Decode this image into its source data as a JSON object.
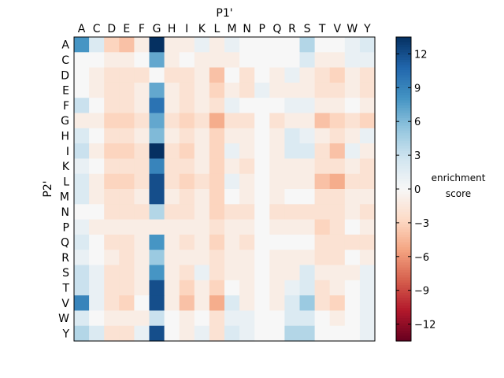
{
  "chart_data": {
    "type": "heatmap",
    "xlabel": "P1'",
    "ylabel": "P2'",
    "x_categories": [
      "A",
      "C",
      "D",
      "E",
      "F",
      "G",
      "H",
      "I",
      "K",
      "L",
      "M",
      "N",
      "P",
      "Q",
      "R",
      "S",
      "T",
      "V",
      "W",
      "Y"
    ],
    "y_categories": [
      "A",
      "C",
      "D",
      "E",
      "F",
      "G",
      "H",
      "I",
      "K",
      "L",
      "M",
      "N",
      "P",
      "Q",
      "R",
      "S",
      "T",
      "V",
      "W",
      "Y"
    ],
    "values": [
      [
        8,
        2,
        -3,
        -4,
        -1,
        13.5,
        -1,
        -1,
        1,
        -1,
        1,
        0,
        0,
        0,
        0,
        4,
        0,
        0,
        1,
        2
      ],
      [
        0,
        0,
        -1,
        -1,
        0,
        7,
        -1,
        0,
        -1,
        -1,
        -1,
        0,
        0,
        0,
        0,
        2,
        -1,
        -1,
        1,
        1
      ],
      [
        0,
        -1,
        -2,
        -2,
        -2,
        0,
        -2,
        -2,
        -1,
        -4,
        0,
        -2,
        0,
        -1,
        1,
        -1,
        -2,
        -3,
        -1,
        -2
      ],
      [
        0,
        -1,
        -2,
        -2,
        -1,
        7,
        -1,
        -2,
        -1,
        -3,
        -1,
        -2,
        1,
        -1,
        -1,
        -1,
        -2,
        -2,
        -1,
        -2
      ],
      [
        3,
        0,
        -2,
        -2,
        -1,
        10,
        -1,
        -2,
        -1,
        -2,
        1,
        0,
        0,
        0,
        1,
        1,
        -1,
        -1,
        0,
        -1
      ],
      [
        -1,
        -1,
        -3,
        -3,
        -2,
        7,
        -2,
        -3,
        -2,
        -5,
        -2,
        -2,
        0,
        -2,
        -1,
        -1,
        -4,
        -3,
        -2,
        -3
      ],
      [
        2,
        0,
        -2,
        -2,
        -1,
        6,
        -1,
        -2,
        -1,
        -3,
        -1,
        -1,
        0,
        -1,
        2,
        1,
        -1,
        -2,
        -1,
        1
      ],
      [
        3,
        -1,
        -3,
        -3,
        -2,
        13.5,
        -2,
        -3,
        -1,
        -3,
        1,
        -1,
        0,
        -1,
        2,
        2,
        -2,
        -4,
        1,
        -1
      ],
      [
        1,
        0,
        -2,
        -2,
        -2,
        9,
        -2,
        -2,
        -1,
        -3,
        -1,
        -2,
        0,
        -1,
        -1,
        -1,
        -2,
        -2,
        -1,
        -2
      ],
      [
        2,
        -1,
        -3,
        -3,
        -2,
        12,
        -2,
        -3,
        -2,
        -3,
        1,
        -1,
        0,
        -1,
        -1,
        -1,
        -4,
        -5,
        -2,
        -2
      ],
      [
        2,
        -1,
        -2,
        -2,
        -1,
        12,
        -1,
        -2,
        -1,
        -3,
        0,
        -1,
        0,
        -1,
        0,
        0,
        -2,
        -2,
        -1,
        -1
      ],
      [
        0,
        0,
        -2,
        -2,
        -2,
        4,
        -2,
        -2,
        -1,
        -3,
        -2,
        -2,
        0,
        -2,
        -2,
        -2,
        -2,
        -2,
        -1,
        -2
      ],
      [
        1,
        -1,
        -1,
        -1,
        -1,
        -1,
        -1,
        -1,
        -1,
        -2,
        -1,
        -1,
        0,
        -1,
        -1,
        -1,
        -3,
        -2,
        0,
        -1
      ],
      [
        2,
        0,
        -2,
        -2,
        -1,
        8,
        -1,
        -2,
        -1,
        -3,
        -1,
        -2,
        0,
        0,
        0,
        0,
        -2,
        -2,
        -2,
        -2
      ],
      [
        1,
        0,
        -1,
        -2,
        -1,
        5,
        -1,
        -1,
        -1,
        -2,
        -1,
        -1,
        0,
        -1,
        -1,
        -1,
        -2,
        -2,
        0,
        -1
      ],
      [
        3,
        1,
        -2,
        -2,
        -1,
        8,
        -1,
        -2,
        1,
        -2,
        -1,
        -1,
        0,
        -1,
        -1,
        2,
        -1,
        -1,
        -1,
        1
      ],
      [
        3,
        1,
        -2,
        -2,
        -1,
        12,
        -1,
        -3,
        -1,
        -3,
        0,
        -1,
        0,
        -1,
        1,
        2,
        -2,
        -1,
        0,
        1
      ],
      [
        9,
        1,
        -2,
        -3,
        0,
        12,
        -1,
        -4,
        -1,
        -5,
        2,
        -1,
        0,
        -1,
        2,
        5,
        -2,
        -3,
        0,
        1
      ],
      [
        2,
        0,
        -1,
        -1,
        -1,
        3,
        0,
        -1,
        0,
        -2,
        1,
        1,
        0,
        0,
        2,
        2,
        0,
        -1,
        0,
        1
      ],
      [
        4,
        2,
        -2,
        -2,
        1,
        12,
        0,
        -1,
        1,
        -2,
        2,
        1,
        0,
        0,
        4,
        4,
        0,
        0,
        0,
        1
      ]
    ],
    "vmin": -13.5,
    "vmax": 13.5,
    "colorbar": {
      "label": "enrichment\nscore",
      "ticks": [
        12,
        9,
        6,
        3,
        0,
        -3,
        -6,
        -9,
        -12
      ],
      "tick_labels": [
        "12",
        "9",
        "6",
        "3",
        "0",
        "−3",
        "−6",
        "−9",
        "−12"
      ]
    },
    "colormap": "RdBu"
  }
}
